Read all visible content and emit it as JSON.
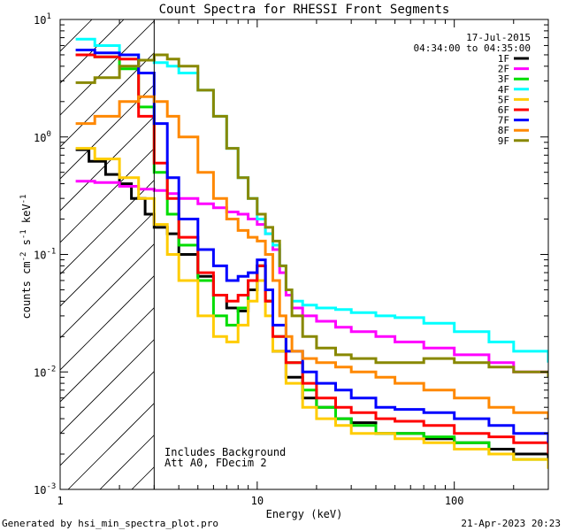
{
  "chart_data": {
    "type": "line",
    "title": "Count Spectra for RHESSI Front Segments",
    "xlabel": "Energy (keV)",
    "ylabel_parts": [
      "counts cm",
      "-2",
      " s",
      "-1",
      " keV",
      "-1"
    ],
    "xscale": "log",
    "yscale": "log",
    "xlim": [
      1,
      300
    ],
    "ylim": [
      0.001,
      10
    ],
    "x_ticks": [
      {
        "value": 1,
        "label": "1"
      },
      {
        "value": 10,
        "label": "10"
      },
      {
        "value": 100,
        "label": "100"
      }
    ],
    "y_ticks": [
      {
        "value": 10,
        "mant": "10",
        "exp": "1"
      },
      {
        "value": 1,
        "mant": "10",
        "exp": "0"
      },
      {
        "value": 0.1,
        "mant": "10",
        "exp": "-1"
      },
      {
        "value": 0.01,
        "mant": "10",
        "exp": "-2"
      },
      {
        "value": 0.001,
        "mant": "10",
        "exp": "-3"
      }
    ],
    "excluded_below_keV": 3,
    "legend_location": "top-right",
    "date": "17-Jul-2015",
    "time_range": "04:34:00 to 04:35:00",
    "annotations": [
      "Includes Background",
      "Att A0, FDecim 2"
    ],
    "series": [
      {
        "name": "1F",
        "color": "#000000",
        "x": [
          1.2,
          1.4,
          1.7,
          2.0,
          2.3,
          2.7,
          3.0,
          3.5,
          4.0,
          5.0,
          6.0,
          7.0,
          8.0,
          9.0,
          10.0,
          11.0,
          12.0,
          14.0,
          17.0,
          20.0,
          25.0,
          30.0,
          40.0,
          50.0,
          70.0,
          100.0,
          150.0,
          200.0,
          300.0
        ],
        "y": [
          0.78,
          0.62,
          0.48,
          0.4,
          0.3,
          0.22,
          0.17,
          0.15,
          0.1,
          0.065,
          0.045,
          0.035,
          0.033,
          0.05,
          0.08,
          0.04,
          0.015,
          0.009,
          0.006,
          0.005,
          0.004,
          0.0037,
          0.003,
          0.003,
          0.0027,
          0.0025,
          0.0022,
          0.002,
          0.0018
        ]
      },
      {
        "name": "2F",
        "color": "#ff00ff",
        "x": [
          1.2,
          1.5,
          2.0,
          2.5,
          3.0,
          3.5,
          4.0,
          5.0,
          6.0,
          7.0,
          8.0,
          9.0,
          10.0,
          11.0,
          12.0,
          13.0,
          14.0,
          15.0,
          17.0,
          20.0,
          25.0,
          30.0,
          40.0,
          50.0,
          70.0,
          100.0,
          150.0,
          200.0,
          300.0
        ],
        "y": [
          0.42,
          0.41,
          0.38,
          0.36,
          0.35,
          0.33,
          0.3,
          0.27,
          0.25,
          0.23,
          0.22,
          0.2,
          0.18,
          0.15,
          0.11,
          0.07,
          0.045,
          0.035,
          0.03,
          0.027,
          0.024,
          0.022,
          0.02,
          0.018,
          0.016,
          0.014,
          0.012,
          0.01,
          0.009
        ]
      },
      {
        "name": "3F",
        "color": "#00dd00",
        "x": [
          1.2,
          1.5,
          2.0,
          2.5,
          3.0,
          3.5,
          4.0,
          5.0,
          6.0,
          7.0,
          8.0,
          9.0,
          10.0,
          11.0,
          12.0,
          14.0,
          17.0,
          20.0,
          25.0,
          30.0,
          40.0,
          50.0,
          70.0,
          100.0,
          150.0,
          200.0,
          300.0
        ],
        "y": [
          5.0,
          4.8,
          3.8,
          1.8,
          0.5,
          0.22,
          0.12,
          0.06,
          0.03,
          0.025,
          0.035,
          0.06,
          0.08,
          0.04,
          0.02,
          0.012,
          0.007,
          0.005,
          0.004,
          0.0035,
          0.003,
          0.003,
          0.0028,
          0.0025,
          0.002,
          0.0018,
          0.0015
        ]
      },
      {
        "name": "4F",
        "color": "#00ffff",
        "x": [
          1.2,
          1.5,
          2.0,
          2.5,
          3.0,
          3.5,
          4.0,
          5.0,
          6.0,
          7.0,
          8.0,
          9.0,
          10.0,
          11.0,
          12.0,
          13.0,
          14.0,
          15.0,
          17.0,
          20.0,
          25.0,
          30.0,
          40.0,
          50.0,
          70.0,
          100.0,
          150.0,
          200.0,
          300.0
        ],
        "y": [
          6.8,
          6.0,
          5.0,
          4.5,
          4.3,
          4.0,
          3.5,
          2.5,
          1.5,
          0.8,
          0.45,
          0.3,
          0.2,
          0.15,
          0.12,
          0.08,
          0.05,
          0.04,
          0.037,
          0.035,
          0.034,
          0.032,
          0.03,
          0.029,
          0.026,
          0.022,
          0.018,
          0.015,
          0.012
        ]
      },
      {
        "name": "5F",
        "color": "#ffcc00",
        "x": [
          1.2,
          1.5,
          2.0,
          2.5,
          3.0,
          3.5,
          4.0,
          5.0,
          6.0,
          7.0,
          8.0,
          9.0,
          10.0,
          11.0,
          12.0,
          14.0,
          17.0,
          20.0,
          25.0,
          30.0,
          40.0,
          50.0,
          70.0,
          100.0,
          150.0,
          200.0,
          300.0
        ],
        "y": [
          0.8,
          0.65,
          0.45,
          0.3,
          0.18,
          0.1,
          0.06,
          0.03,
          0.02,
          0.018,
          0.025,
          0.04,
          0.06,
          0.03,
          0.015,
          0.008,
          0.005,
          0.004,
          0.0035,
          0.003,
          0.003,
          0.0027,
          0.0025,
          0.0022,
          0.002,
          0.0018,
          0.0015
        ]
      },
      {
        "name": "6F",
        "color": "#ff0000",
        "x": [
          1.2,
          1.5,
          2.0,
          2.5,
          3.0,
          3.5,
          4.0,
          5.0,
          6.0,
          7.0,
          8.0,
          9.0,
          10.0,
          11.0,
          12.0,
          14.0,
          17.0,
          20.0,
          25.0,
          30.0,
          40.0,
          50.0,
          70.0,
          100.0,
          150.0,
          200.0,
          300.0
        ],
        "y": [
          5.0,
          4.8,
          4.6,
          1.5,
          0.6,
          0.3,
          0.14,
          0.07,
          0.045,
          0.04,
          0.045,
          0.06,
          0.08,
          0.04,
          0.02,
          0.012,
          0.008,
          0.006,
          0.005,
          0.0045,
          0.004,
          0.0038,
          0.0035,
          0.003,
          0.0028,
          0.0025,
          0.002
        ]
      },
      {
        "name": "7F",
        "color": "#0000ff",
        "x": [
          1.2,
          1.5,
          2.0,
          2.5,
          3.0,
          3.5,
          4.0,
          5.0,
          6.0,
          7.0,
          8.0,
          9.0,
          10.0,
          11.0,
          12.0,
          14.0,
          17.0,
          20.0,
          25.0,
          30.0,
          40.0,
          50.0,
          70.0,
          100.0,
          150.0,
          200.0,
          300.0
        ],
        "y": [
          5.5,
          5.2,
          5.0,
          3.5,
          1.3,
          0.45,
          0.2,
          0.11,
          0.08,
          0.06,
          0.065,
          0.07,
          0.09,
          0.05,
          0.025,
          0.015,
          0.01,
          0.008,
          0.007,
          0.006,
          0.005,
          0.0048,
          0.0045,
          0.004,
          0.0035,
          0.003,
          0.0025
        ]
      },
      {
        "name": "8F",
        "color": "#ff8800",
        "x": [
          1.2,
          1.5,
          2.0,
          2.5,
          3.0,
          3.5,
          4.0,
          5.0,
          6.0,
          7.0,
          8.0,
          9.0,
          10.0,
          11.0,
          12.0,
          13.0,
          14.0,
          15.0,
          17.0,
          20.0,
          25.0,
          30.0,
          40.0,
          50.0,
          70.0,
          100.0,
          150.0,
          200.0,
          300.0
        ],
        "y": [
          1.3,
          1.5,
          2.0,
          2.2,
          2.0,
          1.5,
          1.0,
          0.5,
          0.3,
          0.2,
          0.16,
          0.14,
          0.13,
          0.1,
          0.06,
          0.03,
          0.02,
          0.015,
          0.013,
          0.012,
          0.011,
          0.01,
          0.009,
          0.008,
          0.007,
          0.006,
          0.005,
          0.0045,
          0.004
        ]
      },
      {
        "name": "9F",
        "color": "#888800",
        "x": [
          1.2,
          1.5,
          2.0,
          2.5,
          3.0,
          3.5,
          4.0,
          5.0,
          6.0,
          7.0,
          8.0,
          9.0,
          10.0,
          11.0,
          12.0,
          13.0,
          14.0,
          15.0,
          17.0,
          20.0,
          25.0,
          30.0,
          40.0,
          50.0,
          70.0,
          100.0,
          150.0,
          200.0,
          300.0
        ],
        "y": [
          2.9,
          3.2,
          4.0,
          4.5,
          5.0,
          4.6,
          4.0,
          2.5,
          1.5,
          0.8,
          0.45,
          0.3,
          0.22,
          0.17,
          0.13,
          0.08,
          0.05,
          0.03,
          0.02,
          0.016,
          0.014,
          0.013,
          0.012,
          0.012,
          0.013,
          0.012,
          0.011,
          0.01,
          0.009
        ]
      }
    ]
  },
  "footer": {
    "generated_by": "Generated by hsi_min_spectra_plot.pro",
    "timestamp": "21-Apr-2023 20:23"
  }
}
